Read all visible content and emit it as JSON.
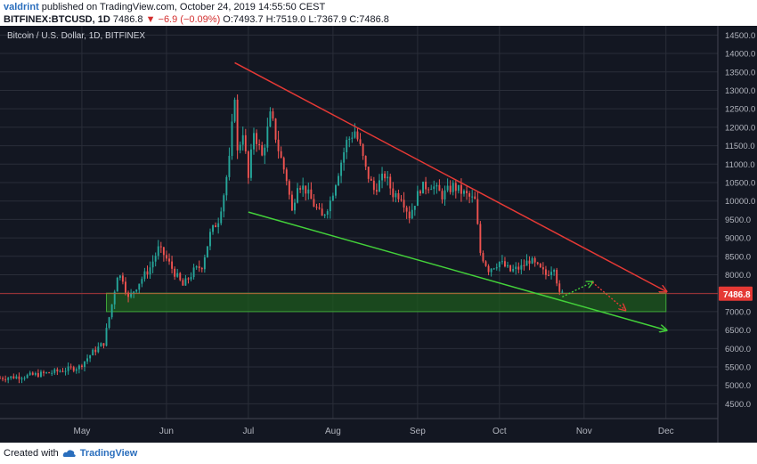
{
  "header": {
    "author": "valdrint",
    "published": "published on TradingView.com, October 24, 2019 14:55:50 CEST"
  },
  "ohlc": {
    "symbol": "BITFINEX:BTCUSD, 1D",
    "last": "7486.8",
    "change": "−6.9 (−0.09%)",
    "o_label": "O:",
    "o": "7493.7",
    "h_label": "H:",
    "h": "7519.0",
    "l_label": "L:",
    "l": "7367.9",
    "c_label": "C:",
    "c": "7486.8"
  },
  "chart_title": "Bitcoin / U.S. Dollar, 1D, BITFINEX",
  "footer": {
    "created_with": "Created with",
    "brand": "TradingView"
  },
  "colors": {
    "background": "#131722",
    "grid": "#2a2e39",
    "up": "#26a69a",
    "down": "#ef5350",
    "resistance": "#e53935",
    "support": "#43d13a",
    "zone": "#1e5a1e",
    "price_tag": "#e53935"
  },
  "chart_data": {
    "type": "candlestick",
    "title": "Bitcoin / U.S. Dollar, 1D, BITFINEX",
    "y_ticks": [
      4500,
      5000,
      5500,
      6000,
      6500,
      7000,
      7500,
      8000,
      8500,
      9000,
      9500,
      10000,
      10500,
      11000,
      11500,
      12000,
      12500,
      13000,
      13500,
      14000,
      14500
    ],
    "y_tick_labels": [
      "4500.0",
      "5000.0",
      "5500.0",
      "6000.0",
      "6500.0",
      "7000.0",
      "7500.0",
      "8000.0",
      "8500.0",
      "9000.0",
      "9500.0",
      "10000.0",
      "10500.0",
      "11000.0",
      "11500.0",
      "12000.0",
      "12500.0",
      "13000.0",
      "13500.0",
      "14000.0",
      "14500.0"
    ],
    "ylim": [
      4100,
      14750
    ],
    "x_labels": [
      "May",
      "Jun",
      "Jul",
      "Aug",
      "Sep",
      "Oct",
      "Nov",
      "Dec"
    ],
    "x_label_dates": [
      "2019-05-01",
      "2019-06-01",
      "2019-07-01",
      "2019-08-01",
      "2019-09-01",
      "2019-10-01",
      "2019-11-01",
      "2019-12-01"
    ],
    "xlim": [
      "2019-04-01",
      "2019-12-20"
    ],
    "last_price": 7486.8,
    "last_price_label": "7486.8",
    "price_path": [
      [
        "2019-04-01",
        5200
      ],
      [
        "2019-04-10",
        5250
      ],
      [
        "2019-04-20",
        5350
      ],
      [
        "2019-04-30",
        5500
      ],
      [
        "2019-05-05",
        5900
      ],
      [
        "2019-05-09",
        6150
      ],
      [
        "2019-05-12",
        7200
      ],
      [
        "2019-05-14",
        8000
      ],
      [
        "2019-05-16",
        7900
      ],
      [
        "2019-05-18",
        7350
      ],
      [
        "2019-05-22",
        7800
      ],
      [
        "2019-05-26",
        8200
      ],
      [
        "2019-05-29",
        8700
      ],
      [
        "2019-05-31",
        8550
      ],
      [
        "2019-06-04",
        8050
      ],
      [
        "2019-06-07",
        7700
      ],
      [
        "2019-06-11",
        8100
      ],
      [
        "2019-06-14",
        8250
      ],
      [
        "2019-06-17",
        9100
      ],
      [
        "2019-06-20",
        9500
      ],
      [
        "2019-06-22",
        10200
      ],
      [
        "2019-06-24",
        11100
      ],
      [
        "2019-06-26",
        12900
      ],
      [
        "2019-06-27",
        11300
      ],
      [
        "2019-06-29",
        11900
      ],
      [
        "2019-07-01",
        10600
      ],
      [
        "2019-07-03",
        11900
      ],
      [
        "2019-07-06",
        11200
      ],
      [
        "2019-07-09",
        12300
      ],
      [
        "2019-07-10",
        12100
      ],
      [
        "2019-07-12",
        11400
      ],
      [
        "2019-07-15",
        10600
      ],
      [
        "2019-07-17",
        9700
      ],
      [
        "2019-07-19",
        10500
      ],
      [
        "2019-07-22",
        10300
      ],
      [
        "2019-07-25",
        9900
      ],
      [
        "2019-07-28",
        9550
      ],
      [
        "2019-07-31",
        10000
      ],
      [
        "2019-08-03",
        10800
      ],
      [
        "2019-08-06",
        11600
      ],
      [
        "2019-08-09",
        11900
      ],
      [
        "2019-08-11",
        11450
      ],
      [
        "2019-08-13",
        10850
      ],
      [
        "2019-08-16",
        10300
      ],
      [
        "2019-08-20",
        10700
      ],
      [
        "2019-08-23",
        10200
      ],
      [
        "2019-08-26",
        10150
      ],
      [
        "2019-08-29",
        9600
      ],
      [
        "2019-09-02",
        10350
      ],
      [
        "2019-09-06",
        10450
      ],
      [
        "2019-09-10",
        10150
      ],
      [
        "2019-09-14",
        10400
      ],
      [
        "2019-09-18",
        10200
      ],
      [
        "2019-09-22",
        10000
      ],
      [
        "2019-09-24",
        8600
      ],
      [
        "2019-09-27",
        8150
      ],
      [
        "2019-10-01",
        8350
      ],
      [
        "2019-10-05",
        8100
      ],
      [
        "2019-10-09",
        8200
      ],
      [
        "2019-10-12",
        8400
      ],
      [
        "2019-10-15",
        8200
      ],
      [
        "2019-10-18",
        8000
      ],
      [
        "2019-10-21",
        8250
      ],
      [
        "2019-10-23",
        7450
      ],
      [
        "2019-10-24",
        7486.8
      ]
    ],
    "resistance_line": {
      "start": [
        "2019-06-26",
        13750
      ],
      "end": [
        "2019-12-01",
        7550
      ],
      "color": "#e53935"
    },
    "support_line": {
      "start": [
        "2019-07-01",
        9700
      ],
      "end": [
        "2019-12-01",
        6500
      ],
      "color": "#43d13a"
    },
    "support_zone": {
      "x_start": "2019-05-10",
      "x_end": "2019-12-01",
      "y_low": 7000,
      "y_high": 7500
    },
    "projection_up": [
      [
        "2019-10-24",
        7400
      ],
      [
        "2019-11-04",
        7800
      ]
    ],
    "projection_down": [
      [
        "2019-11-04",
        7800
      ],
      [
        "2019-11-16",
        7050
      ]
    ],
    "grid": true,
    "legend": "none"
  }
}
